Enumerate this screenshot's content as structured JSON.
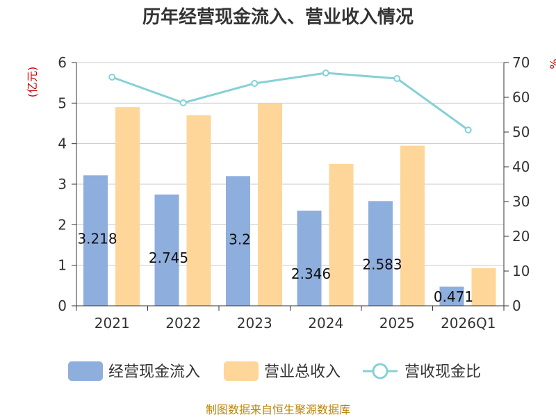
{
  "chart_data": {
    "type": "bar",
    "title": "历年经营现金流入、营业收入情况",
    "categories": [
      "2021",
      "2022",
      "2023",
      "2024",
      "2025",
      "2026Q1"
    ],
    "left_axis": {
      "unit": "(亿元)",
      "ylim": [
        0,
        6
      ],
      "ticks": [
        "0",
        "1",
        "2",
        "3",
        "4",
        "5",
        "6"
      ]
    },
    "right_axis": {
      "unit": "%",
      "ylim": [
        0,
        70
      ],
      "ticks": [
        "0",
        "10",
        "20",
        "30",
        "40",
        "50",
        "60",
        "70"
      ]
    },
    "grid": true,
    "legend_position": "bottom",
    "series": [
      {
        "name": "经营现金流入",
        "kind": "bar",
        "axis": "left",
        "color": "#8eaedd",
        "values": [
          3.218,
          2.745,
          3.2,
          2.346,
          2.583,
          0.471
        ],
        "labels": [
          "3.218",
          "2.745",
          "3.2",
          "2.346",
          "2.583",
          "0.471"
        ]
      },
      {
        "name": "营业总收入",
        "kind": "bar",
        "axis": "left",
        "color": "#ffd699",
        "values": [
          4.9,
          4.7,
          5.0,
          3.5,
          3.95,
          0.93
        ]
      },
      {
        "name": "营收现金比",
        "kind": "line",
        "axis": "right",
        "color": "#85d1d5",
        "values": [
          65.8,
          58.4,
          64.0,
          67.0,
          65.4,
          50.6
        ]
      }
    ],
    "source": "制图数据来自恒生聚源数据库"
  }
}
